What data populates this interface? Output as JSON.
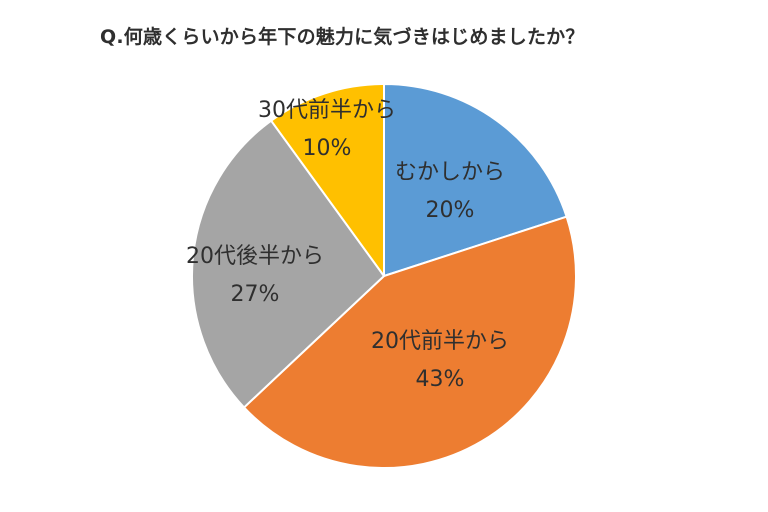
{
  "chart_data": {
    "type": "pie",
    "title": "Q.何歳くらいから年下の魅力に気づきはじめましたか？",
    "categories": [
      "むかしから",
      "20代前半から",
      "20代後半から",
      "30代前半から"
    ],
    "values": [
      20,
      43,
      27,
      10
    ],
    "value_labels": [
      "20%",
      "43%",
      "27%",
      "10%"
    ],
    "colors": [
      "#5B9BD5",
      "#ED7D31",
      "#A5A5A5",
      "#FFC000"
    ],
    "start_angle": "12 o'clock",
    "direction": "clockwise",
    "legend": "none (labels on slices)"
  }
}
